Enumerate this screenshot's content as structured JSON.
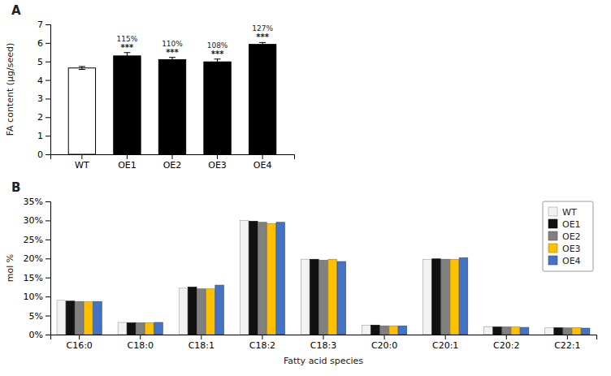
{
  "chart_data": [
    {
      "type": "bar",
      "title": "A",
      "categories": [
        "WT",
        "OE1",
        "OE2",
        "OE3",
        "OE4"
      ],
      "values": [
        4.65,
        5.3,
        5.1,
        4.98,
        5.92
      ],
      "errors": [
        0.08,
        0.18,
        0.12,
        0.15,
        0.1
      ],
      "colors": [
        "white",
        "black",
        "black",
        "black",
        "black"
      ],
      "y_label": "FA content (μg/seed)",
      "ylim": [
        0,
        7
      ],
      "yticks": [
        0,
        1,
        2,
        3,
        4,
        5,
        6,
        7
      ],
      "grid": false,
      "annotations": [
        {
          "x": "OE1",
          "text": "115%"
        },
        {
          "x": "OE1",
          "text": "***"
        },
        {
          "x": "OE2",
          "text": "110%"
        },
        {
          "x": "OE2",
          "text": "***"
        },
        {
          "x": "OE3",
          "text": "108%"
        },
        {
          "x": "OE3",
          "text": "***"
        },
        {
          "x": "OE4",
          "text": "127%"
        },
        {
          "x": "OE4",
          "text": "***"
        }
      ]
    },
    {
      "type": "bar",
      "title": "B",
      "categories": [
        "C16:0",
        "C18:0",
        "C18:1",
        "C18:2",
        "C18:3",
        "C20:0",
        "C20:1",
        "C20:2",
        "C22:1"
      ],
      "series": [
        {
          "name": "WT",
          "color": "#f2f2f2",
          "values": [
            9.0,
            3.2,
            12.2,
            30.0,
            19.8,
            2.5,
            19.8,
            2.0,
            1.8
          ]
        },
        {
          "name": "OE1",
          "color": "#111111",
          "values": [
            8.8,
            3.1,
            12.5,
            29.8,
            19.8,
            2.5,
            19.9,
            2.0,
            1.8
          ]
        },
        {
          "name": "OE2",
          "color": "#808080",
          "values": [
            8.7,
            3.1,
            12.0,
            29.5,
            19.5,
            2.3,
            19.8,
            2.0,
            1.75
          ]
        },
        {
          "name": "OE3",
          "color": "#FFC000",
          "values": [
            8.6,
            3.1,
            12.0,
            29.2,
            19.8,
            2.3,
            19.8,
            2.0,
            1.8
          ]
        },
        {
          "name": "OE4",
          "color": "#4472C4",
          "values": [
            8.7,
            3.2,
            13.0,
            29.5,
            19.2,
            2.3,
            20.2,
            1.9,
            1.7
          ]
        }
      ],
      "x_label": "Fatty acid species",
      "y_label": "mol %",
      "ylim": [
        0,
        35
      ],
      "yticks": [
        {
          "value": 0,
          "label": "0%"
        },
        {
          "value": 5,
          "label": "5%"
        },
        {
          "value": 10,
          "label": "10%"
        },
        {
          "value": 15,
          "label": "15%"
        },
        {
          "value": 20,
          "label": "20%"
        },
        {
          "value": 25,
          "label": "25%"
        },
        {
          "value": 30,
          "label": "30%"
        },
        {
          "value": 35,
          "label": "35%"
        }
      ],
      "grid": false,
      "legend": "upper right"
    }
  ]
}
